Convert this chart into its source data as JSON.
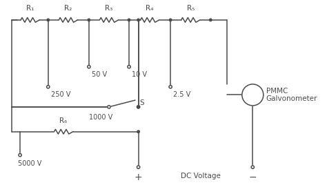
{
  "bg_color": "#ffffff",
  "line_color": "#4a4a4a",
  "text_color": "#4a4a4a",
  "figsize": [
    4.74,
    2.68
  ],
  "dpi": 100,
  "resistor_labels": [
    "R₁",
    "R₂",
    "R₃",
    "R₄",
    "R₅",
    "R₆"
  ],
  "switch_label": "S",
  "bottom_label": "+",
  "minus_label": "−",
  "dc_label": "DC Voltage",
  "galvo_label": [
    "PMMC",
    "Galvonometer"
  ],
  "tap_50": "50 V",
  "tap_10": "10 V",
  "tap_250": "250 V",
  "tap_25": "2.5 V",
  "tap_1000": "1000 V",
  "tap_5000": "5000 V"
}
